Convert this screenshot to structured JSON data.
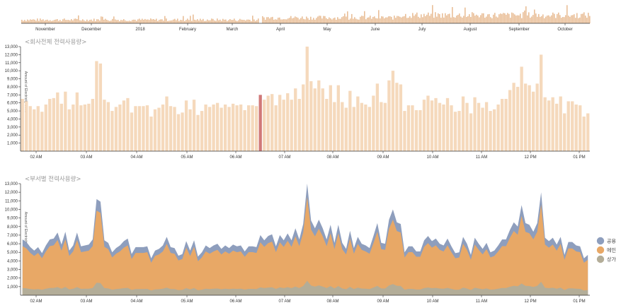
{
  "chart_data": [
    {
      "type": "bar",
      "role": "overview-timeline",
      "x_tick_labels": [
        "November",
        "December",
        "2018",
        "February",
        "March",
        "April",
        "May",
        "June",
        "July",
        "August",
        "September",
        "October"
      ]
    },
    {
      "type": "bar",
      "title": "<회사전체 전력사용량>",
      "ylabel": "Amount of Electricity Used",
      "ylim": [
        0,
        13000
      ],
      "y_ticks": [
        "1,000",
        "2,000",
        "3,000",
        "4,000",
        "5,000",
        "6,000",
        "7,000",
        "8,000",
        "9,000",
        "10,000",
        "11,000",
        "12,000",
        "13,000"
      ],
      "x_tick_labels": [
        "02 AM",
        "03 AM",
        "04 AM",
        "05 AM",
        "06 AM",
        "07 AM",
        "08 AM",
        "09 AM",
        "10 AM",
        "11 AM",
        "12 PM",
        "01 PM"
      ],
      "highlight_index": 61,
      "highlight_color": "#d07878",
      "bar_color": "#f5d9bc",
      "values": [
        6500,
        6200,
        5600,
        5200,
        5600,
        4900,
        5800,
        6500,
        6600,
        7300,
        5900,
        7400,
        5200,
        5800,
        7300,
        5700,
        5800,
        5900,
        6500,
        11200,
        10900,
        6400,
        6100,
        5000,
        5500,
        5800,
        6300,
        6600,
        4800,
        5600,
        5600,
        5600,
        5700,
        4300,
        5200,
        5400,
        5800,
        6800,
        5600,
        5500,
        4600,
        4800,
        6300,
        5200,
        6400,
        4500,
        5000,
        5800,
        5500,
        5800,
        6000,
        5400,
        5800,
        5500,
        5900,
        5700,
        5800,
        5100,
        5700,
        5700,
        5600,
        7000,
        6400,
        6900,
        7100,
        5700,
        7000,
        6400,
        7200,
        6400,
        7800,
        6500,
        8300,
        13000,
        8700,
        7800,
        8800,
        7800,
        6500,
        8200,
        6100,
        8200,
        6100,
        5400,
        7500,
        5500,
        6800,
        6000,
        5800,
        5500,
        6900,
        8400,
        6100,
        6000,
        8800,
        10000,
        8500,
        8300,
        5000,
        5700,
        5700,
        5100,
        5100,
        6400,
        6900,
        6300,
        6600,
        6000,
        5800,
        6600,
        5700,
        4900,
        5000,
        6800,
        6000,
        4700,
        6700,
        6000,
        5400,
        6100,
        5000,
        5200,
        5800,
        6500,
        6500,
        7600,
        8500,
        8000,
        10500,
        8400,
        8200,
        7400,
        8400,
        12000,
        6700,
        6300,
        6700,
        5900,
        6800,
        4700,
        6200,
        6200,
        5800,
        5700,
        4300,
        4700
      ]
    },
    {
      "type": "area",
      "stacked": true,
      "title": "<부서별 전력사용량>",
      "ylabel": "Amount of Electricity Used",
      "ylim": [
        0,
        13000
      ],
      "y_ticks": [
        "1,000",
        "2,000",
        "3,000",
        "4,000",
        "5,000",
        "6,000",
        "7,000",
        "8,000",
        "9,000",
        "10,000",
        "11,000",
        "12,000",
        "13,000"
      ],
      "x_tick_labels": [
        "02 AM",
        "03 AM",
        "04 AM",
        "05 AM",
        "06 AM",
        "07 AM",
        "08 AM",
        "09 AM",
        "10 AM",
        "11 AM",
        "12 PM",
        "01 PM"
      ],
      "legend_position": "right",
      "series": [
        {
          "name": "상가",
          "color": "#b3ad98",
          "share": 0.13
        },
        {
          "name": "메인",
          "color": "#e8a866",
          "share": 0.75
        },
        {
          "name": "공용",
          "color": "#8e9ebd",
          "share": 0.12
        }
      ]
    }
  ]
}
